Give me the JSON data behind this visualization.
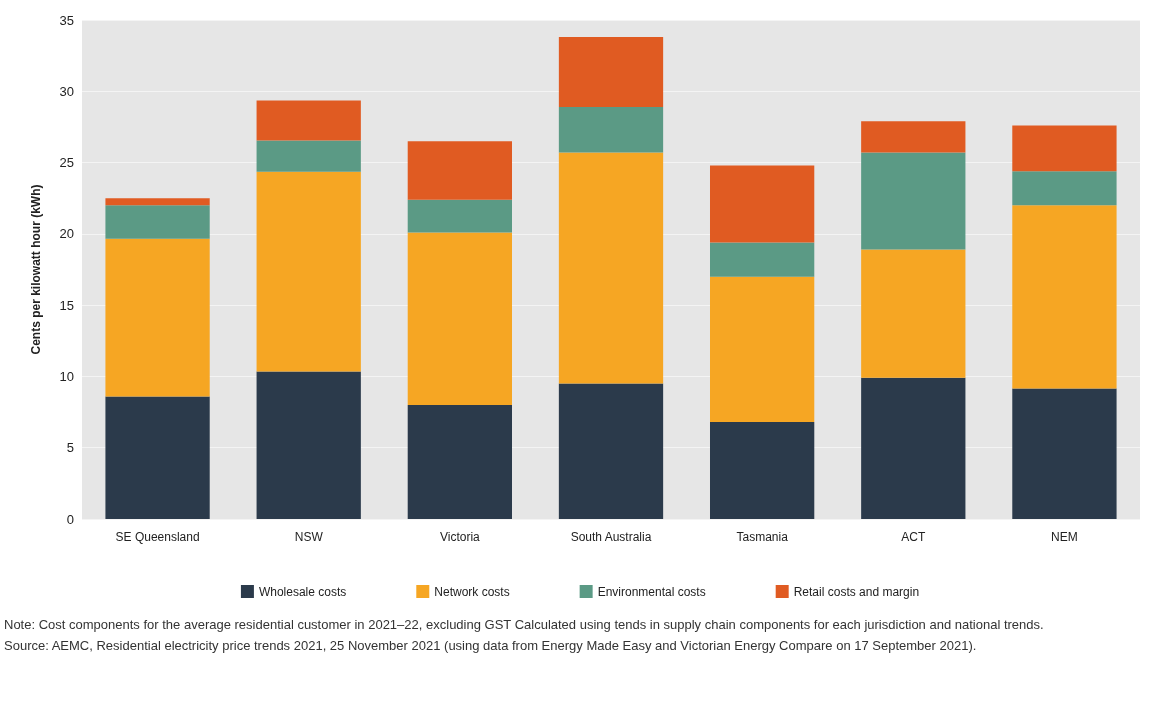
{
  "chart_data": {
    "type": "bar",
    "stacked": true,
    "ylabel": "Cents per kilowatt hour (kWh)",
    "categories": [
      "SE Queensland",
      "NSW",
      "Victoria",
      "South Australia",
      "Tasmania",
      "ACT",
      "NEM"
    ],
    "series": [
      {
        "name": "Wholesale costs",
        "color": "#2b3a4b",
        "values": [
          8.6,
          10.35,
          8.0,
          9.5,
          6.8,
          9.9,
          9.15
        ]
      },
      {
        "name": "Network costs",
        "color": "#f6a623",
        "values": [
          11.05,
          14.0,
          12.1,
          16.2,
          10.2,
          9.0,
          12.85
        ]
      },
      {
        "name": "Environmental costs",
        "color": "#5b9a85",
        "values": [
          2.35,
          2.2,
          2.3,
          3.2,
          2.4,
          6.8,
          2.4
        ]
      },
      {
        "name": "Retail costs and margin",
        "color": "#e05b22",
        "values": [
          0.5,
          2.8,
          4.1,
          4.9,
          5.4,
          2.2,
          3.2
        ]
      }
    ],
    "ylim": [
      0,
      35
    ],
    "yticks": [
      0,
      5,
      10,
      15,
      20,
      25,
      30,
      35
    ],
    "grid": "y",
    "legend": "bottom",
    "annotations": [
      "Note: Cost components for the average residential customer in 2021–22, excluding GST Calculated using tends in supply chain components for each jurisdiction and national trends.",
      "Source: AEMC, Residential electricity price trends 2021, 25 November 2021 (using data from Energy Made Easy and Victorian Energy Compare on 17 September 2021)."
    ]
  }
}
